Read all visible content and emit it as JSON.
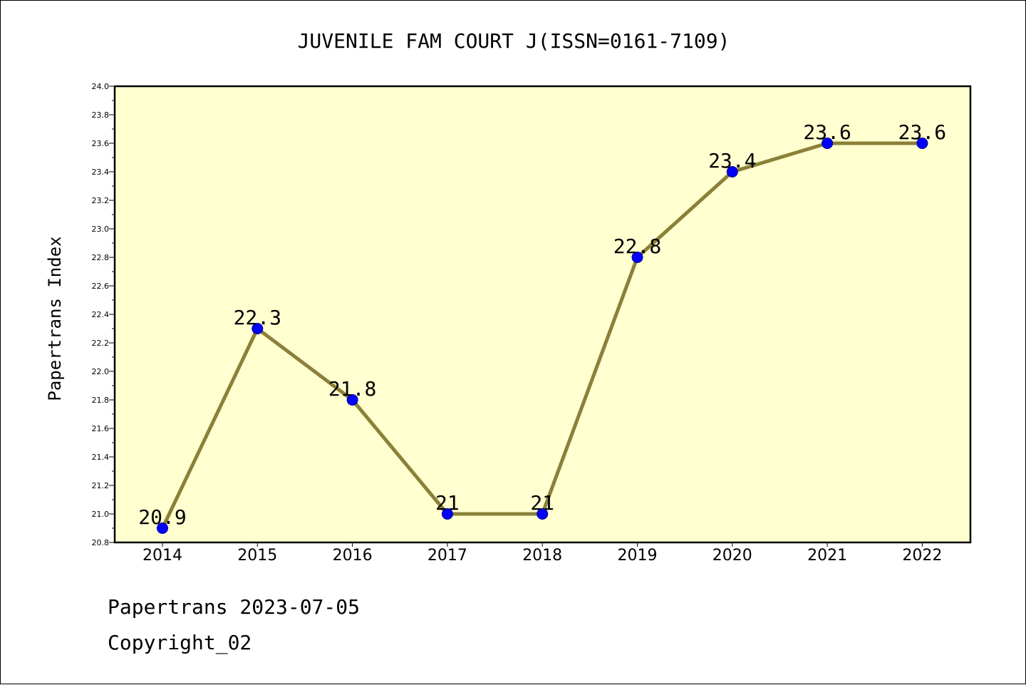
{
  "chart_data": {
    "type": "line",
    "title": "JUVENILE FAM COURT J(ISSN=0161-7109)",
    "xlabel": "",
    "ylabel": "Papertrans Index",
    "categories": [
      "2014",
      "2015",
      "2016",
      "2017",
      "2018",
      "2019",
      "2020",
      "2021",
      "2022"
    ],
    "series": [
      {
        "values": [
          20.9,
          22.3,
          21.8,
          21,
          21,
          22.8,
          23.4,
          23.6,
          23.6
        ],
        "labels": [
          "20.9",
          "22.3",
          "21.8",
          "21",
          "21",
          "22.8",
          "23.4",
          "23.6",
          "23.6"
        ]
      }
    ],
    "ylim": [
      20.8,
      24.0
    ],
    "yticks": [
      "20.8",
      "21.0",
      "21.2",
      "21.4",
      "21.6",
      "21.8",
      "22.0",
      "22.2",
      "22.4",
      "22.6",
      "22.8",
      "23.0",
      "23.2",
      "23.4",
      "23.6",
      "23.8",
      "24.0"
    ],
    "grid": false,
    "legend": "none",
    "colors": {
      "plot_background": "#ffffd0",
      "line": "#8b8038",
      "marker": "#0000ff"
    }
  },
  "footer": {
    "source_line": "Papertrans 2023-07-05",
    "copyright_line": "Copyright_02"
  }
}
